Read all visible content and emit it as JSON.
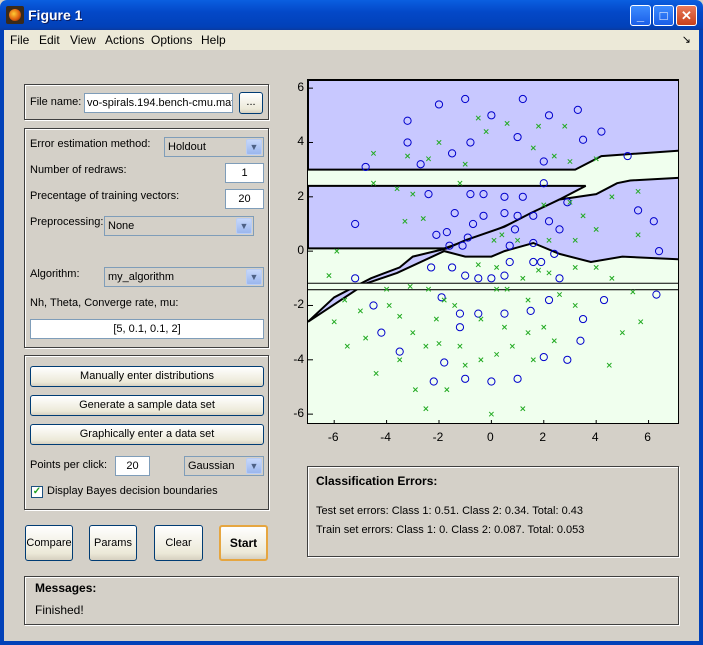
{
  "window": {
    "title": "Figure 1",
    "minimize": "_",
    "maximize": "□",
    "close": "✕"
  },
  "menu": [
    "File",
    "Edit",
    "View",
    "Actions",
    "Options",
    "Help"
  ],
  "menu_arrow": "↘",
  "file": {
    "label": "File name:",
    "value": "vo-spirals.194.bench-cmu.mat",
    "browse": "..."
  },
  "settings": {
    "error_method_label": "Error estimation method:",
    "error_method": "Holdout",
    "redraws_label": "Number of redraws:",
    "redraws": "1",
    "training_label": "Precentage of training vectors:",
    "training": "20",
    "preprocessing_label": "Preprocessing:",
    "preprocessing": "None",
    "algorithm_label": "Algorithm:",
    "algorithm": "my_algorithm",
    "params_label": "Nh, Theta, Converge rate, mu:",
    "params": "[5, 0.1, 0.1, 2]"
  },
  "data": {
    "manual": "Manually enter distributions",
    "generate": "Generate a sample data set",
    "graphical": "Graphically enter a data set",
    "ppc_label": "Points per click:",
    "ppc": "20",
    "dist": "Gaussian",
    "bayes_label": "Display Bayes decision boundaries",
    "bayes_checked": true
  },
  "buttons": {
    "compare": "Compare",
    "params": "Params",
    "clear": "Clear",
    "start": "Start"
  },
  "errors": {
    "title": "Classification Errors:",
    "test": "Test set errors: Class 1: 0.51. Class 2: 0.34. Total: 0.43",
    "train": "Train set errors: Class 1: 0. Class 2: 0.087. Total: 0.053"
  },
  "messages": {
    "title": "Messages:",
    "text": "Finished!"
  },
  "chart_data": {
    "type": "scatter",
    "xlim": [
      -7,
      7.2
    ],
    "ylim": [
      -6.4,
      6.3
    ],
    "x_ticks": [
      "-6",
      "-4",
      "-2",
      "0",
      "2",
      "4",
      "6"
    ],
    "y_ticks": [
      "6",
      "4",
      "2",
      "0",
      "-2",
      "-4",
      "-6"
    ],
    "x_tick_values": [
      -6,
      -4,
      -2,
      0,
      2,
      4,
      6
    ],
    "y_tick_values": [
      6,
      4,
      2,
      0,
      -2,
      -4,
      -6
    ],
    "colors": {
      "class1": "#0000cc",
      "class2": "#22aa22",
      "region1": "#c8c8ff",
      "region2": "#f0ffee"
    },
    "series": [
      {
        "marker": "o",
        "points": [
          [
            -4.8,
            3.1
          ],
          [
            -5.2,
            1.0
          ],
          [
            -5.2,
            -1.0
          ],
          [
            -4.5,
            -2.0
          ],
          [
            -4.2,
            -3.0
          ],
          [
            -3.5,
            -3.7
          ],
          [
            -3.2,
            4.0
          ],
          [
            -3.2,
            4.8
          ],
          [
            -2.7,
            3.2
          ],
          [
            -2.2,
            -4.8
          ],
          [
            -2.0,
            5.4
          ],
          [
            -1.8,
            -4.1
          ],
          [
            -1.5,
            3.6
          ],
          [
            -1.0,
            5.6
          ],
          [
            -0.8,
            4.0
          ],
          [
            -1.0,
            -4.7
          ],
          [
            -1.2,
            -2.8
          ],
          [
            0,
            5.0
          ],
          [
            0,
            -4.8
          ],
          [
            1.2,
            5.6
          ],
          [
            1.0,
            4.2
          ],
          [
            1.0,
            -4.7
          ],
          [
            2.2,
            5.0
          ],
          [
            2.0,
            3.3
          ],
          [
            2.0,
            -3.9
          ],
          [
            3.5,
            4.1
          ],
          [
            2.9,
            -4.0
          ],
          [
            3.4,
            -3.3
          ],
          [
            3.5,
            -2.5
          ],
          [
            3.3,
            5.2
          ],
          [
            4.2,
            4.4
          ],
          [
            4.3,
            -1.8
          ],
          [
            5.2,
            3.5
          ],
          [
            5.6,
            1.5
          ],
          [
            6.2,
            1.1
          ],
          [
            6.3,
            -1.6
          ],
          [
            -2.4,
            2.1
          ],
          [
            -2.1,
            0.6
          ],
          [
            -2.3,
            -0.6
          ],
          [
            -1.9,
            -1.7
          ],
          [
            -1.2,
            -2.3
          ],
          [
            -0.5,
            -2.3
          ],
          [
            0.5,
            -2.3
          ],
          [
            1.5,
            -2.2
          ],
          [
            2.2,
            -1.8
          ],
          [
            2.6,
            -1.0
          ],
          [
            2.6,
            0.8
          ],
          [
            2.9,
            1.8
          ],
          [
            2.0,
            2.5
          ],
          [
            -0.8,
            2.1
          ],
          [
            -0.3,
            2.1
          ],
          [
            0.5,
            2.0
          ],
          [
            1.2,
            2.0
          ],
          [
            1.6,
            1.3
          ],
          [
            2.2,
            1.1
          ],
          [
            1.6,
            0.3
          ],
          [
            1.6,
            -0.4
          ],
          [
            1.9,
            -0.4
          ],
          [
            2.4,
            -0.1
          ],
          [
            -1.4,
            1.4
          ],
          [
            -1.7,
            0.7
          ],
          [
            -1.1,
            0.2
          ],
          [
            -1.6,
            0.2
          ],
          [
            -1.5,
            -0.6
          ],
          [
            -1.0,
            -0.9
          ],
          [
            -0.5,
            -1.0
          ],
          [
            0,
            -1.0
          ],
          [
            0.5,
            -0.9
          ],
          [
            0.7,
            -0.4
          ],
          [
            0.7,
            0.2
          ],
          [
            -0.3,
            1.3
          ],
          [
            -0.7,
            1.0
          ],
          [
            -0.9,
            0.5
          ],
          [
            0.5,
            1.4
          ],
          [
            0.9,
            0.8
          ],
          [
            1.0,
            1.3
          ],
          [
            6.4,
            0
          ]
        ]
      },
      {
        "marker": "x",
        "points": [
          [
            -6.2,
            -0.9
          ],
          [
            -6.0,
            -2.6
          ],
          [
            -5.6,
            -1.8
          ],
          [
            -5.5,
            -3.5
          ],
          [
            -5.0,
            -2.2
          ],
          [
            -4.8,
            -3.2
          ],
          [
            -4.4,
            -4.5
          ],
          [
            -4.0,
            -1.4
          ],
          [
            -3.5,
            -2.4
          ],
          [
            -3.5,
            -4.0
          ],
          [
            -3.1,
            -1.3
          ],
          [
            -3.0,
            -3.0
          ],
          [
            -2.9,
            -5.1
          ],
          [
            -2.5,
            -3.5
          ],
          [
            -2.5,
            -5.8
          ],
          [
            -2.0,
            -3.4
          ],
          [
            -1.8,
            -1.8
          ],
          [
            -1.4,
            -2.0
          ],
          [
            -1.2,
            -3.5
          ],
          [
            -1.0,
            -4.2
          ],
          [
            -0.4,
            -4.0
          ],
          [
            0,
            -6.0
          ],
          [
            0.2,
            -3.8
          ],
          [
            0.5,
            -2.8
          ],
          [
            0.8,
            -3.5
          ],
          [
            1.2,
            -5.8
          ],
          [
            1.4,
            -3.0
          ],
          [
            1.6,
            -4.0
          ],
          [
            2.0,
            -2.8
          ],
          [
            2.4,
            -3.3
          ],
          [
            2.6,
            -1.6
          ],
          [
            3.2,
            -2.0
          ],
          [
            3.2,
            -0.6
          ],
          [
            3.2,
            0.4
          ],
          [
            3.5,
            1.3
          ],
          [
            4.0,
            -0.6
          ],
          [
            4.0,
            0.8
          ],
          [
            4.5,
            -4.2
          ],
          [
            4.6,
            -1.0
          ],
          [
            4.6,
            2.0
          ],
          [
            5.0,
            -3.0
          ],
          [
            5.4,
            -1.5
          ],
          [
            5.6,
            0.6
          ],
          [
            -4.5,
            3.6
          ],
          [
            -3.3,
            1.1
          ],
          [
            -3.6,
            2.3
          ],
          [
            -3.0,
            2.1
          ],
          [
            -2.6,
            1.2
          ],
          [
            -2.4,
            -1.4
          ],
          [
            -2.1,
            -2.5
          ],
          [
            -0.4,
            -2.5
          ],
          [
            0.2,
            -1.4
          ],
          [
            0.6,
            -1.4
          ],
          [
            1.2,
            -1.0
          ],
          [
            1.4,
            -1.8
          ],
          [
            2.2,
            -0.8
          ],
          [
            2.2,
            0.4
          ],
          [
            1.0,
            0.4
          ],
          [
            -2.4,
            3.4
          ],
          [
            -1.2,
            2.5
          ],
          [
            -1.0,
            3.2
          ],
          [
            -0.5,
            4.9
          ],
          [
            -0.2,
            4.4
          ],
          [
            0.6,
            4.7
          ],
          [
            1.6,
            3.8
          ],
          [
            1.8,
            4.6
          ],
          [
            2.4,
            3.5
          ],
          [
            3.0,
            3.3
          ],
          [
            3.0,
            1.8
          ],
          [
            4.0,
            3.4
          ],
          [
            2.8,
            4.6
          ],
          [
            0.2,
            -0.6
          ],
          [
            0.4,
            0.6
          ],
          [
            0.1,
            0.4
          ],
          [
            -0.5,
            -0.5
          ],
          [
            -1.7,
            -5.1
          ],
          [
            -2.0,
            4.0
          ],
          [
            -3.2,
            3.5
          ],
          [
            -4.5,
            2.5
          ],
          [
            5.6,
            2.2
          ],
          [
            5.7,
            -2.6
          ],
          [
            -5.9,
            0.0
          ],
          [
            -3.9,
            -2.0
          ],
          [
            1.8,
            -0.7
          ],
          [
            2.0,
            1.7
          ]
        ]
      }
    ]
  }
}
